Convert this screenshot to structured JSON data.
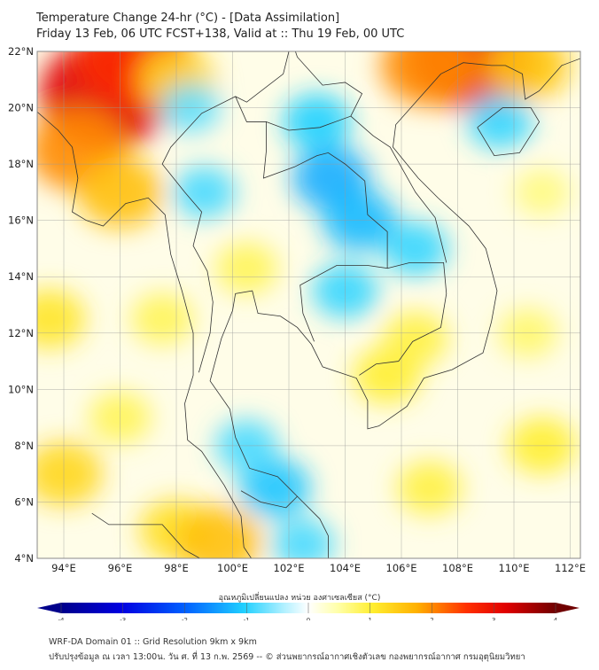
{
  "header": {
    "title": "Temperature Change 24-hr (°C) - [Data Assimilation]",
    "subtitle": "Friday 13 Feb, 06 UTC FCST+138, Valid at :: Thu 19 Feb, 00 UTC"
  },
  "map": {
    "lat_labels": [
      "22°N",
      "20°N",
      "18°N",
      "16°N",
      "14°N",
      "12°N",
      "10°N",
      "8°N",
      "6°N",
      "4°N"
    ],
    "lat_values": [
      22,
      20,
      18,
      16,
      14,
      12,
      10,
      8,
      6,
      4
    ],
    "lon_labels": [
      "94°E",
      "96°E",
      "98°E",
      "100°E",
      "102°E",
      "104°E",
      "106°E",
      "108°E",
      "110°E",
      "112°E"
    ],
    "lon_values": [
      94,
      96,
      98,
      100,
      102,
      104,
      106,
      108,
      110,
      112
    ],
    "field_anomalies": [
      {
        "lon": 95.5,
        "lat": 20.5,
        "value": 3.2
      },
      {
        "lon": 96.5,
        "lat": 21.8,
        "value": 2.6
      },
      {
        "lon": 94.5,
        "lat": 18.5,
        "value": 2.0
      },
      {
        "lon": 96,
        "lat": 17,
        "value": 1.6
      },
      {
        "lon": 98,
        "lat": 21,
        "value": 1.3
      },
      {
        "lon": 108.5,
        "lat": 21.8,
        "value": 3.0
      },
      {
        "lon": 107,
        "lat": 21.5,
        "value": 2.0
      },
      {
        "lon": 110.5,
        "lat": 21.5,
        "value": 1.5
      },
      {
        "lon": 103.5,
        "lat": 17.5,
        "value": -1.3
      },
      {
        "lon": 104.5,
        "lat": 16,
        "value": -1.2
      },
      {
        "lon": 103,
        "lat": 19.5,
        "value": -1.0
      },
      {
        "lon": 106.5,
        "lat": 15,
        "value": -0.9
      },
      {
        "lon": 104,
        "lat": 13.5,
        "value": -0.9
      },
      {
        "lon": 109.5,
        "lat": 19.5,
        "value": -0.9
      },
      {
        "lon": 99,
        "lat": 17,
        "value": -0.8
      },
      {
        "lon": 101.5,
        "lat": 6.5,
        "value": -1.1
      },
      {
        "lon": 100.5,
        "lat": 8,
        "value": -0.8
      },
      {
        "lon": 102.5,
        "lat": 4.5,
        "value": -0.8
      },
      {
        "lon": 100.5,
        "lat": 14.3,
        "value": 0.8
      },
      {
        "lon": 105.5,
        "lat": 10.5,
        "value": 1.0
      },
      {
        "lon": 106.5,
        "lat": 11.8,
        "value": 0.9
      },
      {
        "lon": 94,
        "lat": 7,
        "value": 1.3
      },
      {
        "lon": 93.5,
        "lat": 12.5,
        "value": 1.1
      },
      {
        "lon": 98,
        "lat": 5,
        "value": 1.2
      },
      {
        "lon": 99.5,
        "lat": 4.6,
        "value": 1.6
      },
      {
        "lon": 96,
        "lat": 9,
        "value": 0.8
      },
      {
        "lon": 110.5,
        "lat": 12,
        "value": 0.7
      },
      {
        "lon": 107,
        "lat": 6.5,
        "value": 0.9
      },
      {
        "lon": 111,
        "lat": 8,
        "value": 1.0
      },
      {
        "lon": 97.5,
        "lat": 12.5,
        "value": 0.8
      },
      {
        "lon": 98.5,
        "lat": 20,
        "value": -0.7
      },
      {
        "lon": 111,
        "lat": 17,
        "value": 0.6
      }
    ]
  },
  "colorbar": {
    "title": "อุณหภูมิเปลี่ยนแปลง หน่วย องศาเซลเซียส (°C)",
    "ticks": [
      "-4",
      "-3",
      "-2",
      "-1",
      "0",
      "1",
      "2",
      "3",
      "4"
    ],
    "range": [
      -4,
      4
    ]
  },
  "footer": {
    "line1": "WRF-DA Domain 01 :: Grid Resolution 9km x 9km",
    "line2": "ปรับปรุงข้อมูล ณ เวลา 13:00น. วัน ศ. ที่ 13 ก.พ. 2569 -- © ส่วนพยากรณ์อากาศเชิงตัวเลข กองพยากรณ์อากาศ กรมอุตุนิยมวิทยา"
  }
}
